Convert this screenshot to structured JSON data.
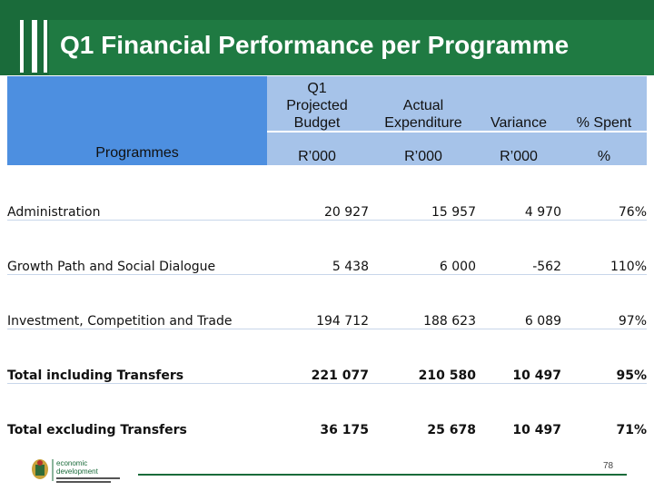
{
  "header": {
    "title": "Q1 Financial Performance per Programme"
  },
  "table": {
    "programmes_header": "Programmes",
    "columns": [
      {
        "label": "Q1 Projected Budget",
        "l1": "Q1",
        "l2": "Projected",
        "l3": "Budget",
        "unit": "R’000"
      },
      {
        "label": "Actual Expenditure",
        "l1": "",
        "l2": "Actual",
        "l3": "Expenditure",
        "unit": "R’000"
      },
      {
        "label": "Variance",
        "l1": "",
        "l2": "",
        "l3": "Variance",
        "unit": "R’000"
      },
      {
        "label": "% Spent",
        "l1": "",
        "l2": "",
        "l3": "% Spent",
        "unit": "%"
      }
    ],
    "rows": [
      {
        "programme": "Administration",
        "budget": "20 927",
        "actual": "15 957",
        "variance": "4 970",
        "spent": "76%"
      },
      {
        "programme": "Growth Path and Social Dialogue",
        "budget": "5 438",
        "actual": "6 000",
        "variance": "-562",
        "spent": "110%"
      },
      {
        "programme": "Investment, Competition and Trade",
        "budget": "194 712",
        "actual": "188 623",
        "variance": "6 089",
        "spent": "97%"
      },
      {
        "programme": "Total including Transfers",
        "budget": "221 077",
        "actual": "210 580",
        "variance": "10 497",
        "spent": "95%"
      },
      {
        "programme": "Total excluding Transfers",
        "budget": "36 175",
        "actual": "25 678",
        "variance": "10 497",
        "spent": "71%"
      }
    ]
  },
  "footer": {
    "logo_line1": "economic",
    "logo_line2": "development",
    "page_number": "78"
  },
  "colors": {
    "header_green": "#1a6b3a",
    "header_blue": "#4d8fe0",
    "header_light_blue": "#a6c3e9"
  }
}
